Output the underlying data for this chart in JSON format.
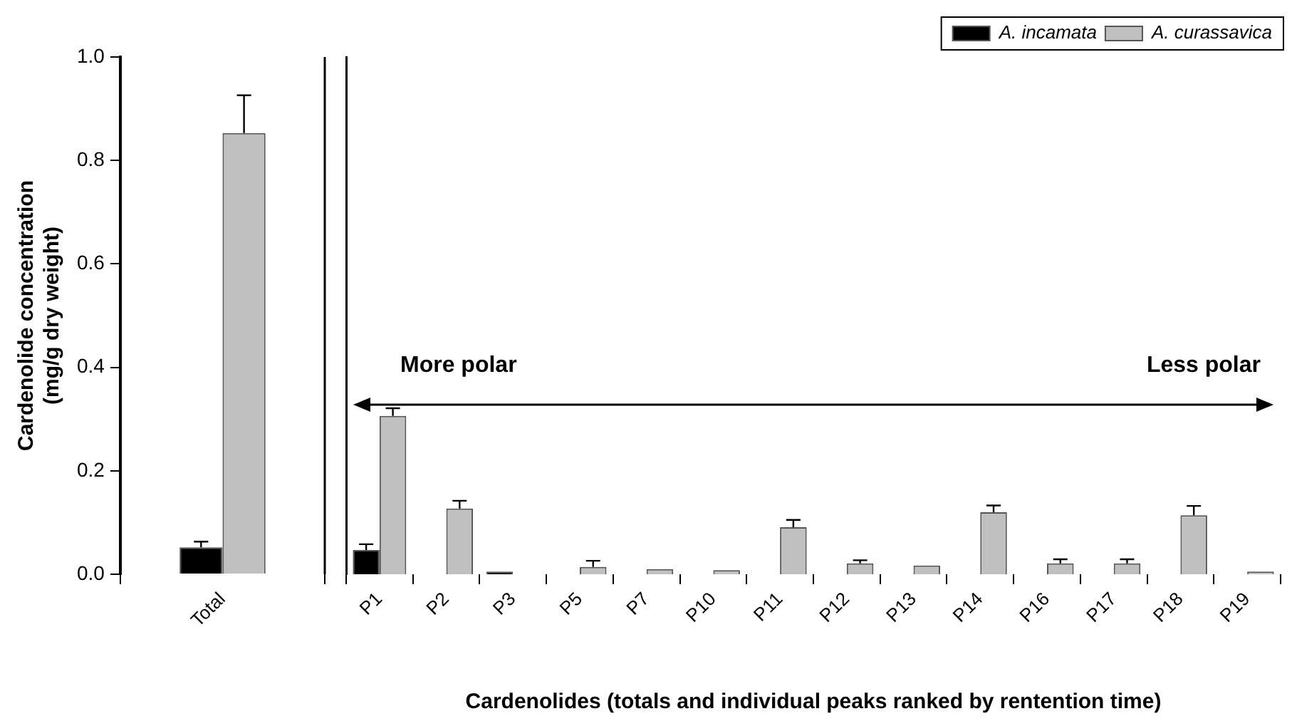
{
  "chart_data": [
    {
      "type": "bar",
      "ylabel": "Cardenolide concentration (mg/g dry weight)",
      "categories": [
        "Total"
      ],
      "series": [
        {
          "color": "#000000",
          "values": [
            0.052
          ],
          "errors": [
            0.011
          ]
        },
        {
          "color": "#c0c0c0",
          "values": [
            0.853
          ],
          "errors": [
            0.073
          ]
        }
      ],
      "ylim": [
        0,
        1
      ],
      "yticks": [
        {
          "value": 0,
          "label": "0.0"
        },
        0.2,
        0.4,
        0.6,
        0.8,
        {
          "value": 1,
          "label": "1.0"
        }
      ]
    },
    {
      "type": "bar",
      "xlabel": "Cardenolides (totals and individual peaks ranked by rentention time)",
      "categories": [
        "P1",
        "P2",
        "P3",
        "P5",
        "P7",
        "P10",
        "P11",
        "P12",
        "P13",
        "P14",
        "P16",
        "P17",
        "P18",
        "P19"
      ],
      "series": [
        {
          "name": "A. incamata",
          "color": "#000000",
          "values": [
            0.047,
            0,
            0.005,
            0,
            0,
            0,
            0,
            0,
            0,
            0,
            0,
            0,
            0,
            0
          ],
          "errors": [
            0.011,
            null,
            null,
            null,
            null,
            null,
            null,
            null,
            null,
            null,
            null,
            null,
            null,
            null
          ]
        },
        {
          "name": "A. curassavica",
          "color": "#c0c0c0",
          "values": [
            0.306,
            0.127,
            0,
            0.014,
            0.01,
            0.008,
            0.091,
            0.021,
            0.017,
            0.12,
            0.021,
            0.021,
            0.114,
            0.005
          ],
          "errors": [
            0.015,
            0.015,
            null,
            0.012,
            null,
            null,
            0.014,
            0.006,
            null,
            0.013,
            0.008,
            0.008,
            0.018,
            null
          ]
        }
      ],
      "ylim": [
        0,
        1
      ],
      "tick_labels": "x",
      "legend": "top right",
      "annotations": [
        "More polar",
        "Less polar"
      ]
    }
  ]
}
